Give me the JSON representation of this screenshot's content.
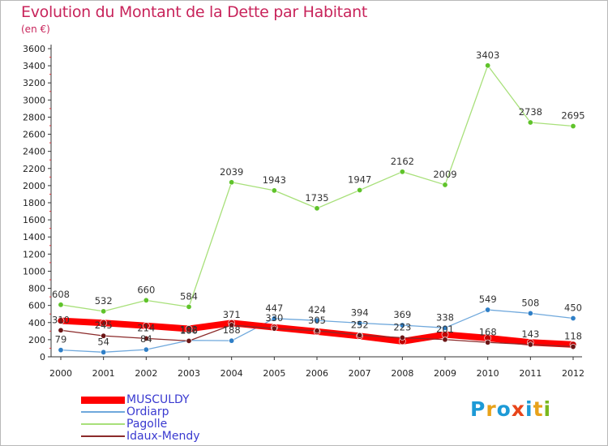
{
  "header": {
    "title": "Evolution du Montant de la Dette par Habitant",
    "subtitle": "(en €)"
  },
  "logo": {
    "text": "Proxiti",
    "letters": [
      {
        "char": "P",
        "color": "#1d9ad6"
      },
      {
        "char": "r",
        "color": "#e8a21a"
      },
      {
        "char": "o",
        "color": "#1d9ad6"
      },
      {
        "char": "x",
        "color": "#e8451a"
      },
      {
        "char": "i",
        "color": "#1d9ad6"
      },
      {
        "char": "t",
        "color": "#e8a21a"
      },
      {
        "char": "i",
        "color": "#7ab81e"
      }
    ]
  },
  "chart_data": {
    "type": "line",
    "title": "Evolution du Montant de la Dette par Habitant",
    "subtitle": "(en €)",
    "xlabel": "",
    "ylabel": "",
    "x": [
      "2000",
      "2001",
      "2002",
      "2003",
      "2004",
      "2005",
      "2006",
      "2007",
      "2008",
      "2009",
      "2010",
      "2011",
      "2012"
    ],
    "ylim": [
      0,
      3600
    ],
    "yticks": [
      0,
      200,
      400,
      600,
      800,
      1000,
      1200,
      1400,
      1600,
      1800,
      2000,
      2200,
      2400,
      2600,
      2800,
      3000,
      3200,
      3400,
      3600
    ],
    "grid": false,
    "legend": "bottom-left",
    "series": [
      {
        "name": "MUSCULDY",
        "color": "#ff0000",
        "marker": "#c00000",
        "labels": false,
        "values": [
          421,
          396,
          363,
          327,
          395,
          344,
          295,
          243,
          181,
          260,
          219,
          168,
          143
        ]
      },
      {
        "name": "Ordiarp",
        "color": "#6fa8dc",
        "marker": "#2f7fc7",
        "labels": true,
        "values": [
          79,
          54,
          84,
          192,
          188,
          447,
          424,
          394,
          369,
          338,
          549,
          508,
          450
        ]
      },
      {
        "name": "Pagolle",
        "color": "#a8e07a",
        "marker": "#5fc32a",
        "labels": true,
        "values": [
          608,
          532,
          660,
          584,
          2039,
          1943,
          1735,
          1947,
          2162,
          2009,
          3403,
          2738,
          2695
        ]
      },
      {
        "name": "Idaux-Mendy",
        "color": "#8b2a2a",
        "marker": "#6b1515",
        "labels": true,
        "values": [
          310,
          245,
          214,
          186,
          371,
          330,
          305,
          252,
          223,
          201,
          168,
          143,
          118
        ]
      }
    ]
  }
}
